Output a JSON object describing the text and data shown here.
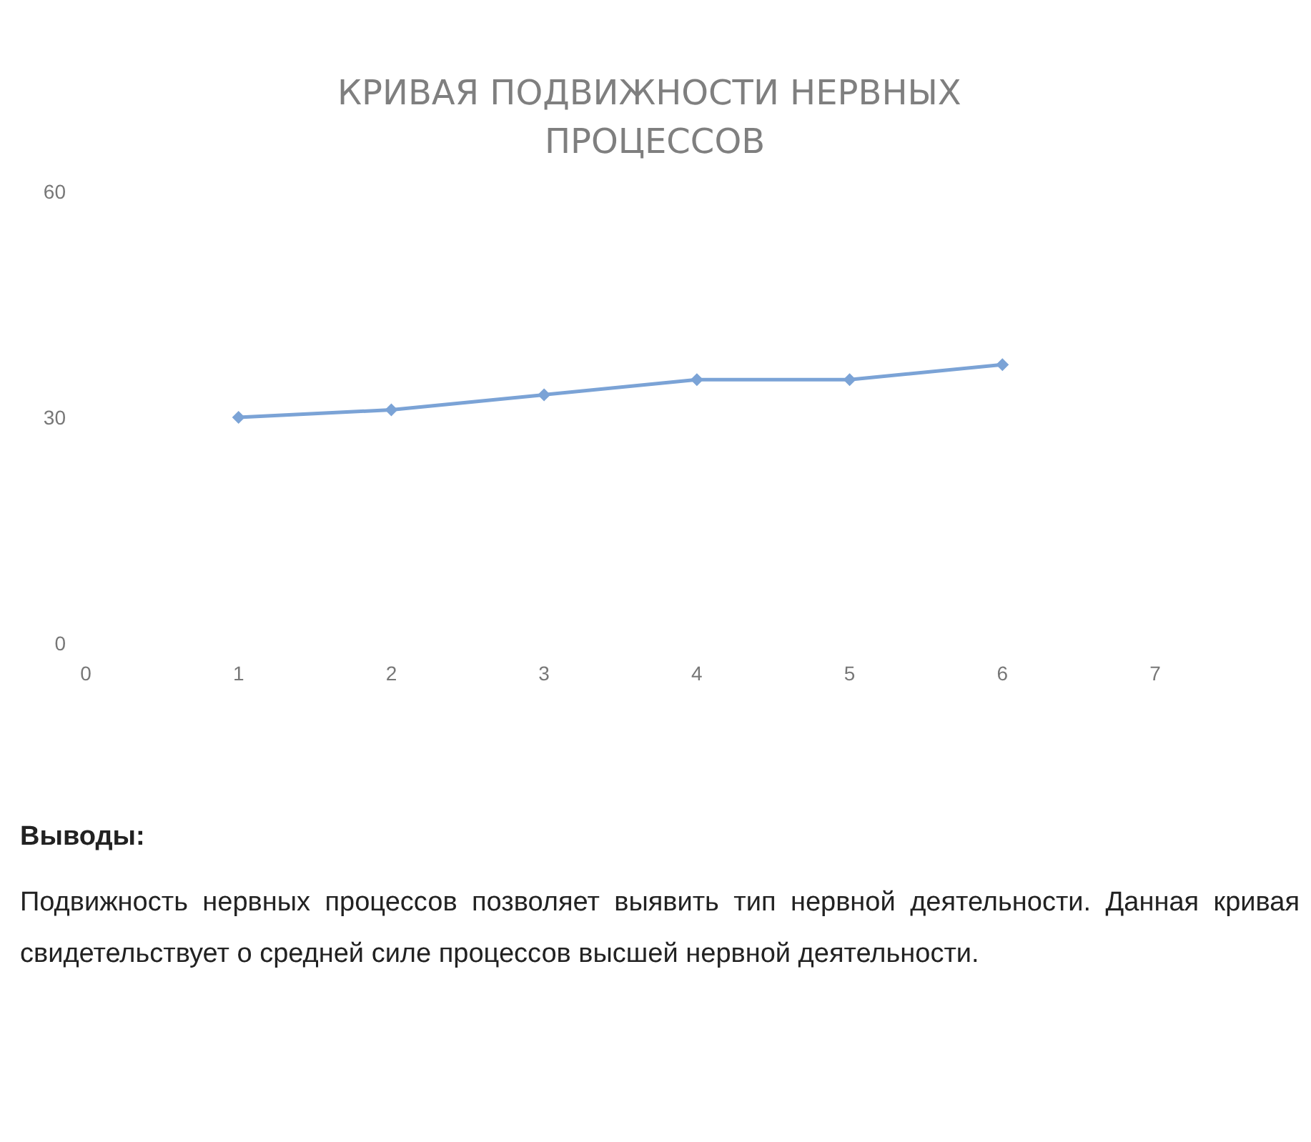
{
  "chart_data": {
    "type": "line",
    "title": "КРИВАЯ ПОДВИЖНОСТИ НЕРВНЫХ ПРОЦЕССОВ",
    "x": [
      1,
      2,
      3,
      4,
      5,
      6
    ],
    "series": [
      {
        "color": "#7ba3d6",
        "values": [
          30,
          31,
          33,
          35,
          35,
          37
        ]
      }
    ],
    "xlim": [
      0,
      7
    ],
    "xticks": [
      0,
      1,
      2,
      3,
      4,
      5,
      6,
      7
    ],
    "ylim": [
      0,
      60
    ],
    "yticks": [
      0,
      30,
      60
    ],
    "marker": "diamond",
    "line_style": "solid",
    "annotations": [
      "Выводы:",
      "Подвижность нервных процессов позволяет выявить тип нервной деятельности. Данная кривая свидетельствует о средней силе процессов высшей нервной деятельности."
    ]
  }
}
